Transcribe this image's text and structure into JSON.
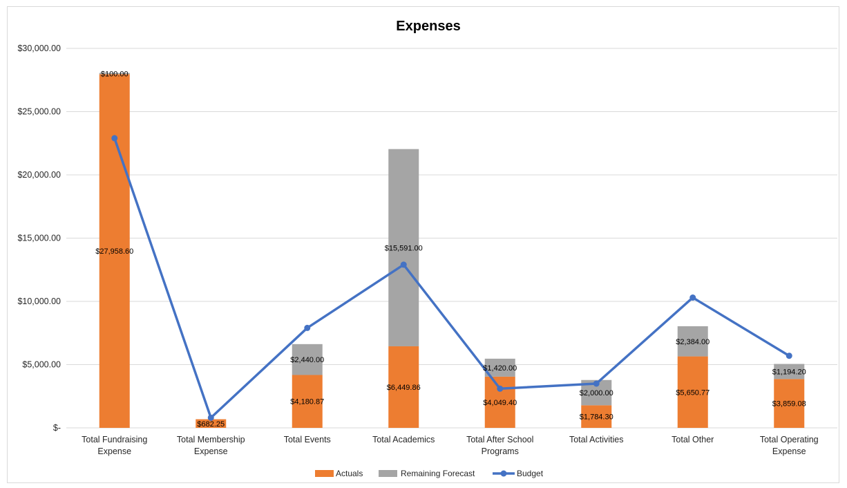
{
  "chart_data": {
    "type": "bar",
    "title": "Expenses",
    "categories": [
      [
        "Total Fundraising",
        "Expense"
      ],
      [
        "Total Membership",
        "Expense"
      ],
      [
        "Total Events"
      ],
      [
        "Total Academics"
      ],
      [
        "Total After School",
        "Programs"
      ],
      [
        "Total Activities"
      ],
      [
        "Total Other"
      ],
      [
        "Total Operating",
        "Expense"
      ]
    ],
    "ylim": [
      0,
      30000
    ],
    "yticks": [
      0,
      5000,
      10000,
      15000,
      20000,
      25000,
      30000
    ],
    "ytick_labels": [
      "$-",
      "$5,000.00",
      "$10,000.00",
      "$15,000.00",
      "$20,000.00",
      "$25,000.00",
      "$30,000.00"
    ],
    "grid": true,
    "legend_position": "bottom",
    "series": [
      {
        "name": "Actuals",
        "kind": "stacked-bar",
        "color": "#ed7d31",
        "values": [
          27958.6,
          682.25,
          4180.87,
          6449.86,
          4049.4,
          1784.3,
          5650.77,
          3859.08
        ],
        "labels": [
          "$27,958.60",
          "$682.25",
          "$4,180.87",
          "$6,449.86",
          "$4,049.40",
          "$1,784.30",
          "$5,650.77",
          "$3,859.08"
        ]
      },
      {
        "name": "Remaining Forecast",
        "kind": "stacked-bar",
        "color": "#a5a5a5",
        "values": [
          100.0,
          0,
          2440.0,
          15591.0,
          1420.0,
          2000.0,
          2384.0,
          1194.2
        ],
        "labels": [
          "$100.00",
          "",
          "$2,440.00",
          "$15,591.00",
          "$1,420.00",
          "$2,000.00",
          "$2,384.00",
          "$1,194.20"
        ]
      },
      {
        "name": "Budget",
        "kind": "line",
        "color": "#4472c4",
        "values": [
          22900,
          800,
          7900,
          12900,
          3100,
          3500,
          10300,
          5700
        ]
      }
    ]
  }
}
